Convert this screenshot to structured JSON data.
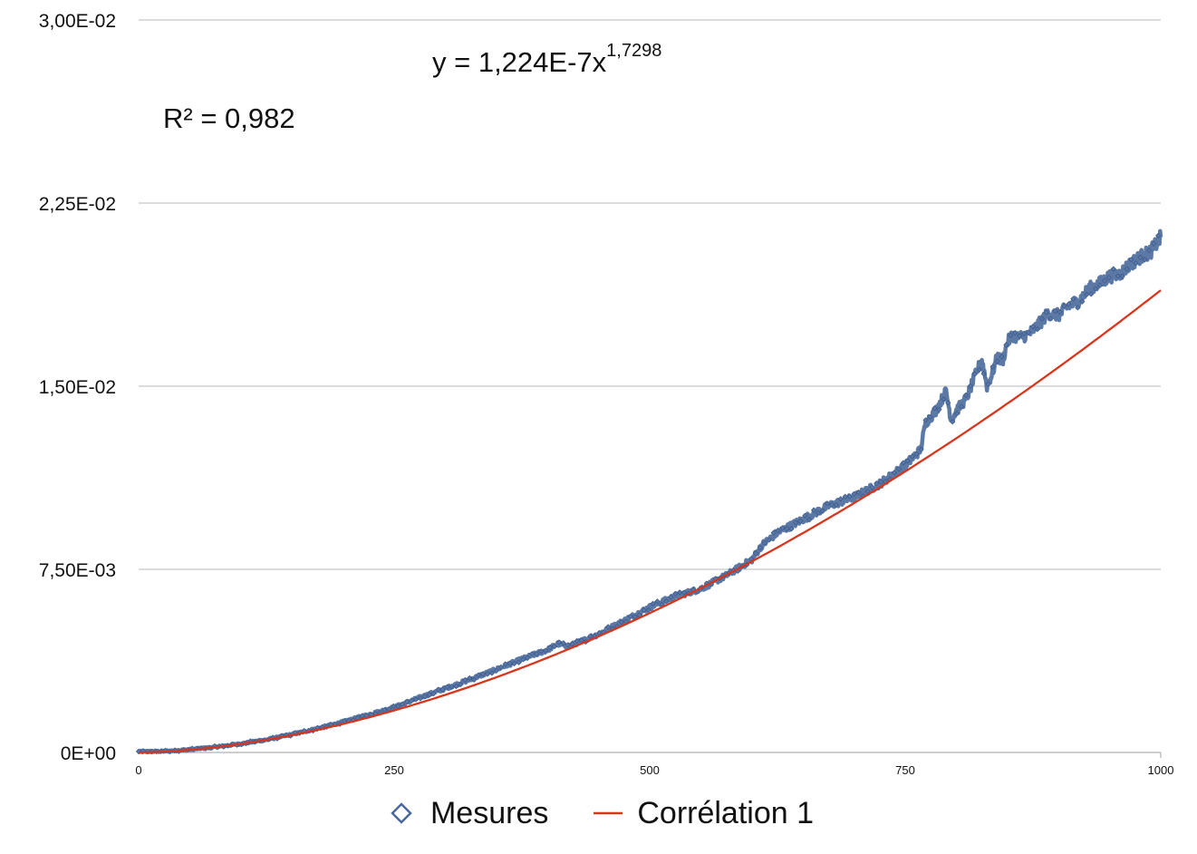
{
  "chart_data": {
    "type": "scatter",
    "title": "",
    "xlabel": "",
    "ylabel": "",
    "xlim": [
      0,
      1000
    ],
    "ylim": [
      0,
      0.03
    ],
    "x_ticks": [
      0,
      250,
      500,
      750,
      1000
    ],
    "x_tick_labels": [
      "0",
      "250",
      "500",
      "750",
      "1000"
    ],
    "y_ticks": [
      0,
      0.0075,
      0.015,
      0.0225,
      0.03
    ],
    "y_tick_labels": [
      "0E+00",
      "7,50E-03",
      "1,50E-02",
      "2,25E-02",
      "3,00E-02"
    ],
    "grid": "horizontal",
    "legend_placement": "bottom",
    "annotations": {
      "equation_prefix": "y = 1,224E-7x",
      "equation_exponent": "1,7298",
      "r_squared": "R² = 0,982"
    },
    "series": [
      {
        "name": "Mesures",
        "kind": "markers",
        "marker": "diamond",
        "color": "#4a6a9c",
        "x": [
          0,
          25,
          50,
          75,
          100,
          125,
          150,
          175,
          200,
          225,
          250,
          275,
          300,
          325,
          350,
          375,
          400,
          410,
          420,
          430,
          450,
          475,
          500,
          525,
          550,
          575,
          600,
          610,
          625,
          650,
          675,
          700,
          725,
          750,
          765,
          770,
          780,
          790,
          795,
          800,
          810,
          820,
          825,
          830,
          835,
          840,
          845,
          850,
          855,
          860,
          870,
          880,
          890,
          900,
          910,
          920,
          930,
          940,
          950,
          960,
          970,
          980,
          990,
          1000
        ],
        "y": [
          3e-05,
          5e-05,
          0.00012,
          0.00022,
          0.00036,
          0.00052,
          0.00074,
          0.00098,
          0.00125,
          0.00155,
          0.00185,
          0.00225,
          0.00262,
          0.003,
          0.0034,
          0.00382,
          0.0042,
          0.00445,
          0.00435,
          0.0045,
          0.00485,
          0.0054,
          0.00595,
          0.0064,
          0.0067,
          0.00725,
          0.0079,
          0.0085,
          0.009,
          0.00955,
          0.0101,
          0.01045,
          0.011,
          0.01175,
          0.0124,
          0.0135,
          0.014,
          0.0148,
          0.0136,
          0.014,
          0.0145,
          0.0156,
          0.0161,
          0.015,
          0.0155,
          0.0162,
          0.016,
          0.0168,
          0.0171,
          0.017,
          0.0171,
          0.0175,
          0.018,
          0.0179,
          0.0183,
          0.0185,
          0.019,
          0.0192,
          0.0195,
          0.0196,
          0.02,
          0.0203,
          0.0205,
          0.0211
        ]
      },
      {
        "name": "Corrélation 1",
        "kind": "line",
        "color": "#d8361c",
        "model": {
          "a": 1.224e-07,
          "b": 1.7298
        }
      }
    ]
  }
}
